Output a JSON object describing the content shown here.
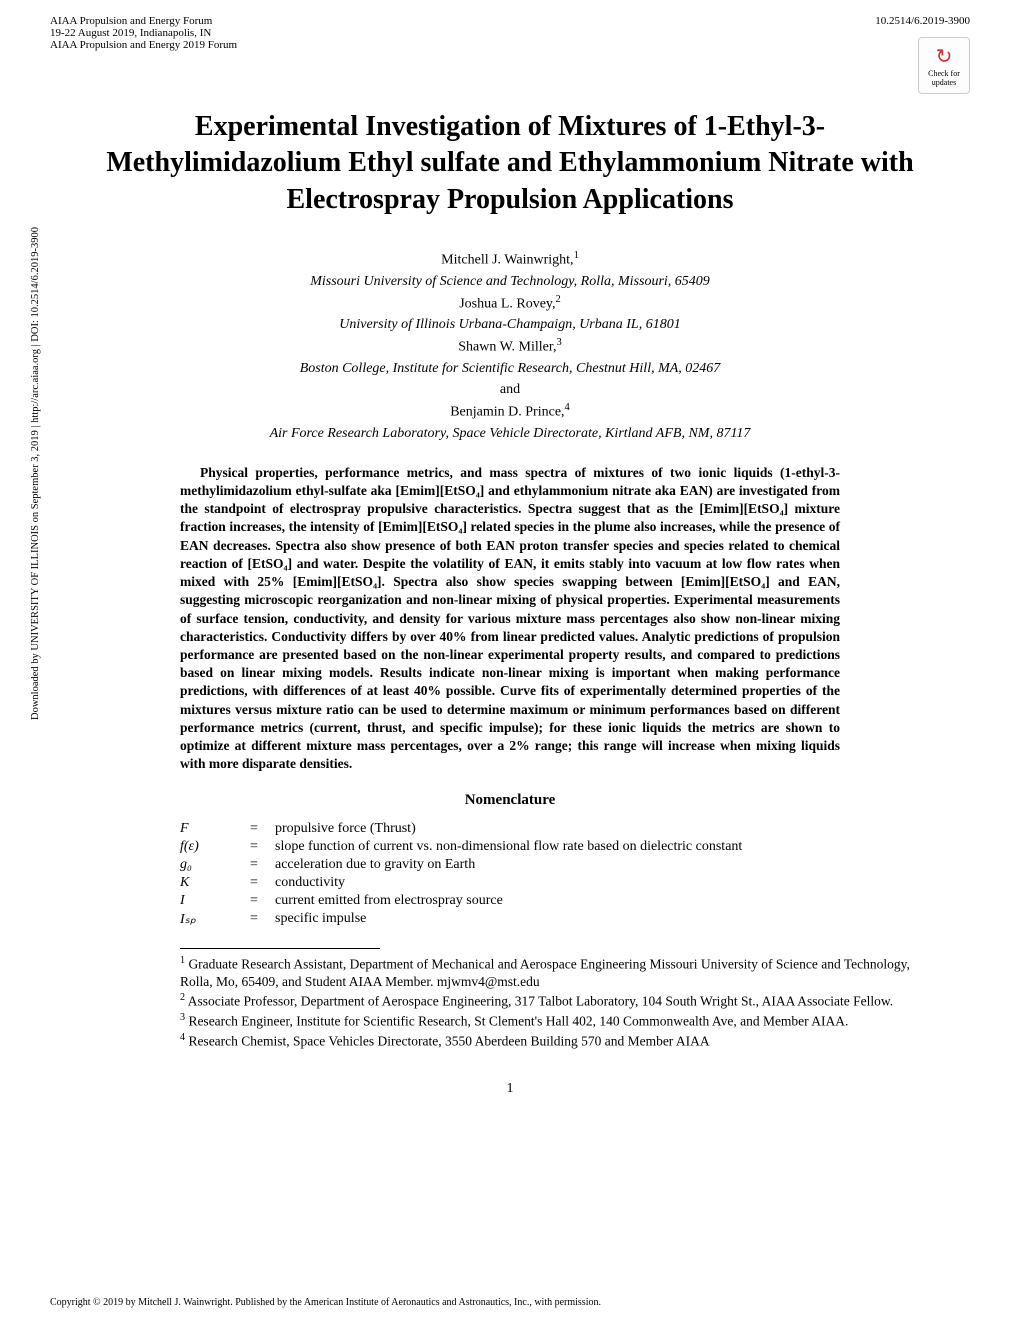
{
  "header": {
    "conference": "AIAA Propulsion and Energy Forum",
    "date_location": "19-22 August 2019, Indianapolis, IN",
    "event": "AIAA Propulsion and Energy 2019 Forum",
    "doi": "10.2514/6.2019-3900",
    "badge_text": "Check for updates"
  },
  "title": "Experimental Investigation of Mixtures of 1-Ethyl-3-Methylimidazolium Ethyl sulfate and Ethylammonium Nitrate with Electrospray Propulsion Applications",
  "authors": [
    {
      "name": "Mitchell J. Wainwright,",
      "sup": "1"
    },
    {
      "affiliation": "Missouri University of Science and Technology, Rolla, Missouri, 65409"
    },
    {
      "name": "Joshua L. Rovey,",
      "sup": "2"
    },
    {
      "affiliation": "University of Illinois Urbana-Champaign, Urbana IL, 61801"
    },
    {
      "name": "Shawn W. Miller,",
      "sup": "3"
    },
    {
      "affiliation": "Boston College, Institute for Scientific Research, Chestnut Hill, MA, 02467"
    },
    {
      "text": "and"
    },
    {
      "name": "Benjamin D. Prince,",
      "sup": "4"
    },
    {
      "affiliation": "Air Force Research Laboratory, Space Vehicle Directorate, Kirtland AFB, NM, 87117"
    }
  ],
  "abstract": "Physical properties, performance metrics, and mass spectra of mixtures of two ionic liquids (1-ethyl-3-methylimidazolium ethyl-sulfate aka [Emim][EtSO₄] and ethylammonium nitrate aka EAN) are investigated from the standpoint of electrospray propulsive characteristics. Spectra suggest that as the [Emim][EtSO₄] mixture fraction increases, the intensity of [Emim][EtSO₄] related species in the plume also increases, while the presence of EAN decreases. Spectra also show presence of both EAN proton transfer species and species related to chemical reaction of [EtSO₄] and water. Despite the volatility of EAN, it emits stably into vacuum at low flow rates when mixed with 25% [Emim][EtSO₄]. Spectra also show species swapping between [Emim][EtSO₄] and EAN, suggesting microscopic reorganization and non-linear mixing of physical properties. Experimental measurements of surface tension, conductivity, and density for various mixture mass percentages also show non-linear mixing characteristics. Conductivity differs by over 40% from linear predicted values. Analytic predictions of propulsion performance are presented based on the non-linear experimental property results, and compared to predictions based on linear mixing models. Results indicate non-linear mixing is important when making performance predictions, with differences of at least 40% possible. Curve fits of experimentally determined properties of the mixtures versus mixture ratio can be used to determine maximum or minimum performances based on different performance metrics (current, thrust, and specific impulse); for these ionic liquids the metrics are shown to optimize at different mixture mass percentages, over a 2% range; this range will increase when mixing liquids with more disparate densities.",
  "nomenclature_heading": "Nomenclature",
  "nomenclature": [
    {
      "symbol": "F",
      "desc": "propulsive force (Thrust)"
    },
    {
      "symbol": "f(ε)",
      "desc": "slope function of current vs. non-dimensional flow rate based on dielectric constant"
    },
    {
      "symbol": "g₀",
      "desc": "acceleration due to gravity on Earth"
    },
    {
      "symbol": "K",
      "desc": "conductivity"
    },
    {
      "symbol": "I",
      "desc": "current emitted from electrospray source"
    },
    {
      "symbol": "Iₛₚ",
      "desc": "specific impulse"
    }
  ],
  "footnotes": [
    {
      "num": "1",
      "text": " Graduate Research Assistant, Department of Mechanical and Aerospace Engineering Missouri University of Science and Technology, Rolla, Mo, 65409, and Student AIAA Member. mjwmv4@mst.edu"
    },
    {
      "num": "2",
      "text": " Associate Professor, Department of Aerospace Engineering, 317 Talbot Laboratory, 104 South Wright St., AIAA Associate Fellow."
    },
    {
      "num": "3",
      "text": " Research Engineer, Institute for Scientific Research, St Clement's Hall 402, 140 Commonwealth Ave, and Member AIAA."
    },
    {
      "num": "4",
      "text": " Research Chemist, Space Vehicles Directorate, 3550 Aberdeen Building 570 and Member AIAA"
    }
  ],
  "page_number": "1",
  "copyright": "Copyright © 2019 by Mitchell J. Wainwright. Published by the American Institute of Aeronautics and Astronautics, Inc., with permission.",
  "sidebar": "Downloaded by UNIVERSITY OF ILLINOIS on September 3, 2019 | http://arc.aiaa.org | DOI: 10.2514/6.2019-3900"
}
